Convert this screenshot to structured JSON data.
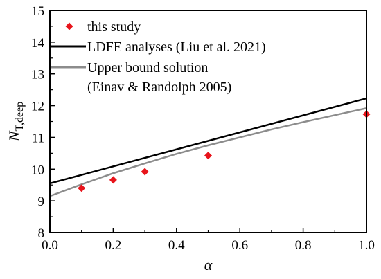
{
  "chart_data": {
    "type": "scatter",
    "xlabel": "α",
    "ylabel_main": "N",
    "ylabel_sub": "T,deep",
    "xlim": [
      0.0,
      1.0
    ],
    "ylim": [
      8,
      15
    ],
    "x_ticks": [
      "0.0",
      "0.2",
      "0.4",
      "0.6",
      "0.8",
      "1.0"
    ],
    "y_ticks": [
      "8",
      "9",
      "10",
      "11",
      "12",
      "13",
      "14",
      "15"
    ],
    "grid": false,
    "legend_position": "top-left",
    "series": [
      {
        "name": "this study",
        "kind": "points",
        "marker": "diamond",
        "color": "#e8141b",
        "x": [
          0.1,
          0.2,
          0.3,
          0.5,
          1.0
        ],
        "y": [
          9.4,
          9.66,
          9.92,
          10.43,
          11.73
        ]
      },
      {
        "name": "LDFE analyses (Liu et al. 2021)",
        "kind": "line",
        "color": "#000000",
        "x": [
          0.0,
          1.0
        ],
        "y": [
          9.55,
          12.23
        ]
      },
      {
        "name": "Upper bound solution",
        "name_line2": "(Einav & Randolph 2005)",
        "kind": "line",
        "color": "#8c8c8c",
        "x": [
          0.0,
          0.1,
          0.2,
          0.3,
          0.4,
          0.5,
          0.6,
          0.7,
          0.8,
          0.9,
          1.0
        ],
        "y": [
          9.15,
          9.52,
          9.87,
          10.18,
          10.48,
          10.75,
          11.0,
          11.25,
          11.48,
          11.7,
          11.92
        ]
      }
    ]
  }
}
